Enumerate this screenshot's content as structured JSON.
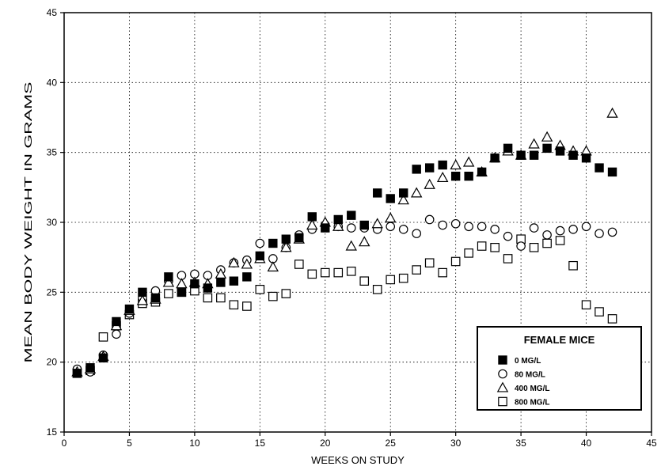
{
  "chart_data": {
    "type": "scatter",
    "title": "",
    "xlabel": "WEEKS ON STUDY",
    "ylabel": "MEAN BODY WEIGHT IN GRAMS",
    "xlim": [
      0,
      45
    ],
    "ylim": [
      15,
      45
    ],
    "xticks": [
      "0",
      "5",
      "10",
      "15",
      "20",
      "25",
      "30",
      "35",
      "40",
      "45"
    ],
    "yticks": [
      "15",
      "20",
      "25",
      "30",
      "35",
      "40",
      "45"
    ],
    "grid": true,
    "legend": {
      "title": "FEMALE MICE",
      "placement": "bottom-right",
      "entries": [
        "0 MG/L",
        "80 MG/L",
        "400 MG/L",
        "800 MG/L"
      ]
    },
    "series": [
      {
        "name": "0 MG/L",
        "marker": "filled-square",
        "points": [
          [
            1,
            19.2
          ],
          [
            2,
            19.6
          ],
          [
            3,
            20.3
          ],
          [
            4,
            22.9
          ],
          [
            5,
            23.8
          ],
          [
            6,
            25.0
          ],
          [
            7,
            24.6
          ],
          [
            8,
            26.1
          ],
          [
            9,
            25.0
          ],
          [
            10,
            25.6
          ],
          [
            11,
            25.3
          ],
          [
            12,
            25.7
          ],
          [
            13,
            25.8
          ],
          [
            14,
            26.1
          ],
          [
            15,
            27.6
          ],
          [
            16,
            28.5
          ],
          [
            17,
            28.8
          ],
          [
            18,
            28.9
          ],
          [
            19,
            30.4
          ],
          [
            20,
            29.6
          ],
          [
            21,
            30.2
          ],
          [
            22,
            30.5
          ],
          [
            23,
            29.8
          ],
          [
            24,
            32.1
          ],
          [
            25,
            31.7
          ],
          [
            26,
            32.1
          ],
          [
            27,
            33.8
          ],
          [
            28,
            33.9
          ],
          [
            29,
            34.1
          ],
          [
            30,
            33.3
          ],
          [
            31,
            33.3
          ],
          [
            32,
            33.6
          ],
          [
            33,
            34.6
          ],
          [
            34,
            35.3
          ],
          [
            35,
            34.8
          ],
          [
            36,
            34.8
          ],
          [
            37,
            35.3
          ],
          [
            38,
            35.1
          ],
          [
            39,
            34.8
          ],
          [
            40,
            34.6
          ],
          [
            41,
            33.9
          ],
          [
            42,
            33.6
          ]
        ]
      },
      {
        "name": "80 MG/L",
        "marker": "open-circle",
        "points": [
          [
            1,
            19.5
          ],
          [
            2,
            19.3
          ],
          [
            3,
            20.5
          ],
          [
            4,
            22.0
          ],
          [
            5,
            23.5
          ],
          [
            6,
            24.6
          ],
          [
            7,
            25.1
          ],
          [
            8,
            25.8
          ],
          [
            9,
            26.2
          ],
          [
            10,
            26.3
          ],
          [
            11,
            26.2
          ],
          [
            12,
            26.6
          ],
          [
            13,
            27.1
          ],
          [
            14,
            27.3
          ],
          [
            15,
            28.5
          ],
          [
            16,
            27.4
          ],
          [
            17,
            28.2
          ],
          [
            18,
            29.1
          ],
          [
            19,
            29.5
          ],
          [
            20,
            29.8
          ],
          [
            21,
            29.7
          ],
          [
            22,
            29.6
          ],
          [
            23,
            29.6
          ],
          [
            24,
            29.5
          ],
          [
            25,
            29.7
          ],
          [
            26,
            29.5
          ],
          [
            27,
            29.2
          ],
          [
            28,
            30.2
          ],
          [
            29,
            29.8
          ],
          [
            30,
            29.9
          ],
          [
            31,
            29.7
          ],
          [
            32,
            29.7
          ],
          [
            33,
            29.5
          ],
          [
            34,
            29.0
          ],
          [
            35,
            28.3
          ],
          [
            36,
            29.6
          ],
          [
            37,
            29.1
          ],
          [
            38,
            29.4
          ],
          [
            39,
            29.5
          ],
          [
            40,
            29.7
          ],
          [
            41,
            29.2
          ],
          [
            42,
            29.3
          ]
        ]
      },
      {
        "name": "400 MG/L",
        "marker": "open-triangle",
        "points": [
          [
            1,
            19.3
          ],
          [
            2,
            19.5
          ],
          [
            3,
            20.4
          ],
          [
            4,
            22.6
          ],
          [
            5,
            23.7
          ],
          [
            6,
            24.4
          ],
          [
            7,
            24.5
          ],
          [
            8,
            25.7
          ],
          [
            9,
            25.6
          ],
          [
            10,
            25.7
          ],
          [
            11,
            25.6
          ],
          [
            12,
            26.3
          ],
          [
            13,
            27.1
          ],
          [
            14,
            27.0
          ],
          [
            15,
            27.4
          ],
          [
            16,
            26.8
          ],
          [
            17,
            28.2
          ],
          [
            18,
            28.8
          ],
          [
            19,
            29.8
          ],
          [
            20,
            30.0
          ],
          [
            21,
            29.7
          ],
          [
            22,
            28.3
          ],
          [
            23,
            28.6
          ],
          [
            24,
            29.9
          ],
          [
            25,
            30.3
          ],
          [
            26,
            31.6
          ],
          [
            27,
            32.1
          ],
          [
            28,
            32.7
          ],
          [
            29,
            33.2
          ],
          [
            30,
            34.1
          ],
          [
            31,
            34.3
          ],
          [
            32,
            33.6
          ],
          [
            33,
            34.6
          ],
          [
            34,
            35.1
          ],
          [
            35,
            34.8
          ],
          [
            36,
            35.6
          ],
          [
            37,
            36.1
          ],
          [
            38,
            35.5
          ],
          [
            39,
            35.1
          ],
          [
            40,
            35.1
          ],
          [
            42,
            37.8
          ]
        ]
      },
      {
        "name": "800 MG/L",
        "marker": "open-square",
        "points": [
          [
            1,
            19.2
          ],
          [
            2,
            19.4
          ],
          [
            3,
            21.8
          ],
          [
            4,
            22.6
          ],
          [
            5,
            23.4
          ],
          [
            6,
            24.2
          ],
          [
            7,
            24.3
          ],
          [
            8,
            24.9
          ],
          [
            9,
            25.0
          ],
          [
            10,
            25.1
          ],
          [
            11,
            24.6
          ],
          [
            12,
            24.6
          ],
          [
            13,
            24.1
          ],
          [
            14,
            24.0
          ],
          [
            15,
            25.2
          ],
          [
            16,
            24.7
          ],
          [
            17,
            24.9
          ],
          [
            18,
            27.0
          ],
          [
            19,
            26.3
          ],
          [
            20,
            26.4
          ],
          [
            21,
            26.4
          ],
          [
            22,
            26.5
          ],
          [
            23,
            25.8
          ],
          [
            24,
            25.2
          ],
          [
            25,
            25.9
          ],
          [
            26,
            26.0
          ],
          [
            27,
            26.6
          ],
          [
            28,
            27.1
          ],
          [
            29,
            26.4
          ],
          [
            30,
            27.2
          ],
          [
            31,
            27.8
          ],
          [
            32,
            28.3
          ],
          [
            33,
            28.2
          ],
          [
            34,
            27.4
          ],
          [
            35,
            28.8
          ],
          [
            36,
            28.2
          ],
          [
            37,
            28.5
          ],
          [
            38,
            28.7
          ],
          [
            39,
            26.9
          ],
          [
            40,
            24.1
          ],
          [
            41,
            23.6
          ],
          [
            42,
            23.1
          ]
        ]
      }
    ]
  }
}
